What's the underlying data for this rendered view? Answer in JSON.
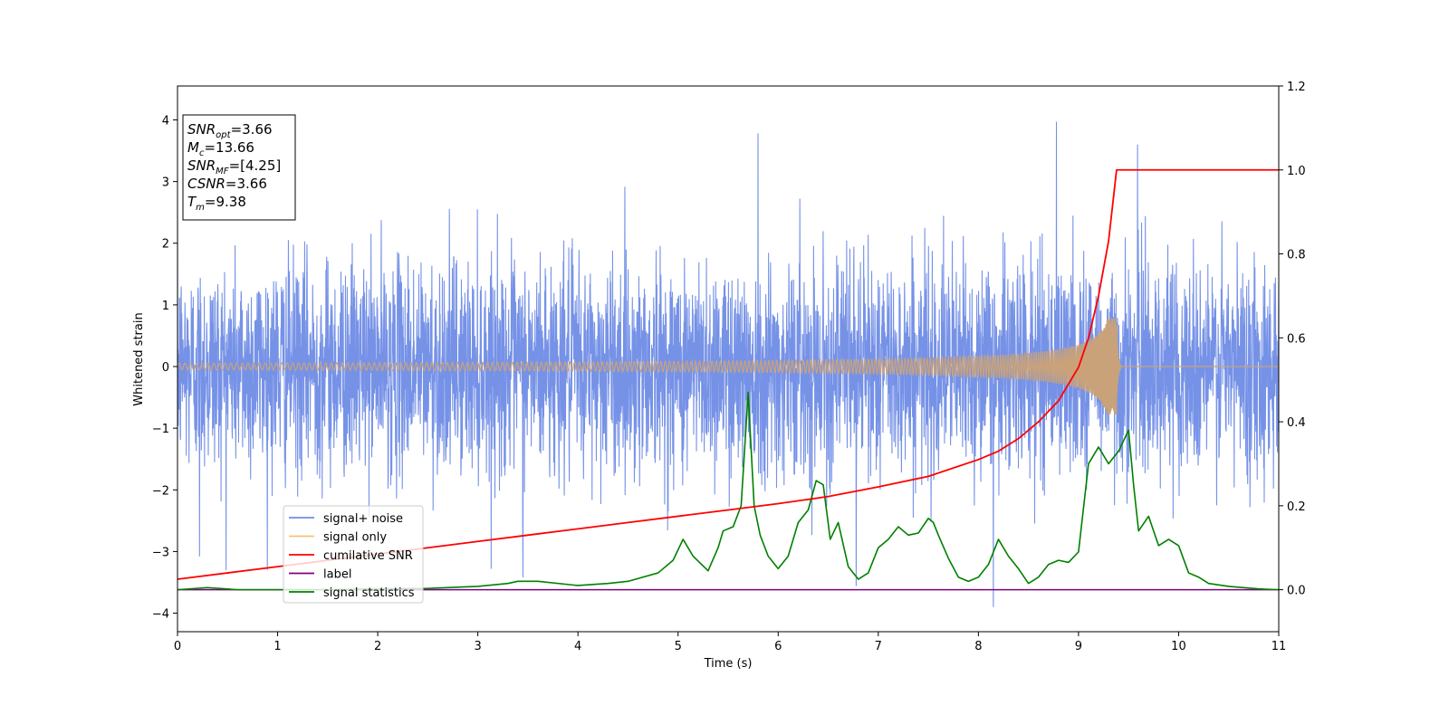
{
  "chart_data": {
    "type": "line",
    "xlabel": "Time (s)",
    "ylabel": "Whitened strain",
    "xlim": [
      0,
      11
    ],
    "ylim": [
      -4.3,
      4.55
    ],
    "y2lim": [
      -0.1,
      1.2
    ],
    "x_ticks": [
      "0",
      "1",
      "2",
      "3",
      "4",
      "5",
      "6",
      "7",
      "8",
      "9",
      "10",
      "11"
    ],
    "y_ticks": [
      "−4",
      "−3",
      "−2",
      "−1",
      "0",
      "1",
      "2",
      "3",
      "4"
    ],
    "y2_ticks": [
      "0.0",
      "0.2",
      "0.4",
      "0.6",
      "0.8",
      "1.0",
      "1.2"
    ],
    "grid": false,
    "legend_position": "lower-left",
    "colors": {
      "signal_noise": "#6f8ce6",
      "signal_only": "#f6c27a",
      "cumulative_snr": "#ff0000",
      "label": "#800080",
      "signal_statistics": "#008000"
    },
    "series": [
      {
        "name": "signal+ noise",
        "axis": "left",
        "style": "noise",
        "envelope": {
          "sigma": 0.85,
          "spikes": [
            {
              "x": 5.8,
              "y": 3.78
            },
            {
              "x": 8.78,
              "y": 3.97
            },
            {
              "x": 9.59,
              "y": 3.6
            },
            {
              "x": 8.15,
              "y": -3.9
            },
            {
              "x": 0.22,
              "y": -3.08
            },
            {
              "x": 3.45,
              "y": -3.42
            },
            {
              "x": 6.78,
              "y": -3.56
            }
          ]
        }
      },
      {
        "name": "signal only",
        "axis": "left",
        "style": "chirp",
        "chirp": {
          "t_merge": 9.38,
          "peak_amplitude": 0.78
        }
      },
      {
        "name": "cumilative SNR",
        "axis": "right",
        "x": [
          0,
          0.5,
          1,
          1.5,
          2,
          2.5,
          3,
          3.5,
          4,
          4.5,
          5,
          5.5,
          6,
          6.5,
          7,
          7.5,
          8,
          8.2,
          8.4,
          8.6,
          8.8,
          9.0,
          9.1,
          9.2,
          9.3,
          9.38,
          11
        ],
        "y": [
          0.025,
          0.04,
          0.055,
          0.07,
          0.085,
          0.1,
          0.115,
          0.13,
          0.145,
          0.16,
          0.175,
          0.19,
          0.205,
          0.222,
          0.245,
          0.27,
          0.31,
          0.33,
          0.36,
          0.4,
          0.45,
          0.53,
          0.6,
          0.7,
          0.83,
          1.0,
          1.0
        ]
      },
      {
        "name": "label",
        "axis": "right",
        "x": [
          0,
          11
        ],
        "y": [
          0.0,
          0.0
        ]
      },
      {
        "name": "signal statistics",
        "axis": "right",
        "x": [
          0,
          0.3,
          0.6,
          1.0,
          1.5,
          2.0,
          2.5,
          3.0,
          3.3,
          3.4,
          3.6,
          4.0,
          4.3,
          4.5,
          4.8,
          4.95,
          5.05,
          5.15,
          5.3,
          5.4,
          5.45,
          5.55,
          5.63,
          5.7,
          5.76,
          5.82,
          5.9,
          6.0,
          6.1,
          6.2,
          6.3,
          6.38,
          6.45,
          6.52,
          6.6,
          6.7,
          6.8,
          6.9,
          7.0,
          7.1,
          7.2,
          7.3,
          7.4,
          7.5,
          7.55,
          7.6,
          7.7,
          7.8,
          7.9,
          8.0,
          8.1,
          8.2,
          8.3,
          8.4,
          8.5,
          8.6,
          8.7,
          8.8,
          8.9,
          9.0,
          9.1,
          9.15,
          9.2,
          9.3,
          9.4,
          9.5,
          9.55,
          9.6,
          9.7,
          9.8,
          9.9,
          10.0,
          10.1,
          10.2,
          10.3,
          10.5,
          10.8,
          11.0
        ],
        "y": [
          0.0,
          0.005,
          0.0,
          0.0,
          0.0,
          0.002,
          0.003,
          0.008,
          0.015,
          0.02,
          0.02,
          0.01,
          0.015,
          0.02,
          0.04,
          0.07,
          0.12,
          0.08,
          0.045,
          0.1,
          0.14,
          0.15,
          0.2,
          0.47,
          0.2,
          0.13,
          0.08,
          0.05,
          0.08,
          0.16,
          0.19,
          0.26,
          0.25,
          0.12,
          0.16,
          0.055,
          0.025,
          0.04,
          0.1,
          0.12,
          0.15,
          0.13,
          0.135,
          0.17,
          0.16,
          0.13,
          0.075,
          0.03,
          0.02,
          0.03,
          0.06,
          0.12,
          0.08,
          0.05,
          0.015,
          0.03,
          0.06,
          0.07,
          0.065,
          0.09,
          0.3,
          0.32,
          0.34,
          0.3,
          0.33,
          0.38,
          0.25,
          0.14,
          0.175,
          0.105,
          0.12,
          0.105,
          0.04,
          0.03,
          0.015,
          0.008,
          0.002,
          0.0
        ]
      }
    ],
    "annotation": {
      "lines": [
        {
          "base": "SNR",
          "sub": "opt",
          "value": "=3.66"
        },
        {
          "base": "M",
          "sub": "c",
          "value": "=13.66"
        },
        {
          "base": "SNR",
          "sub": "MF",
          "value": "=[4.25]"
        },
        {
          "base": "CSNR",
          "sub": "",
          "value": "=3.66"
        },
        {
          "base": "T",
          "sub": "m",
          "value": "=9.38"
        }
      ]
    }
  }
}
